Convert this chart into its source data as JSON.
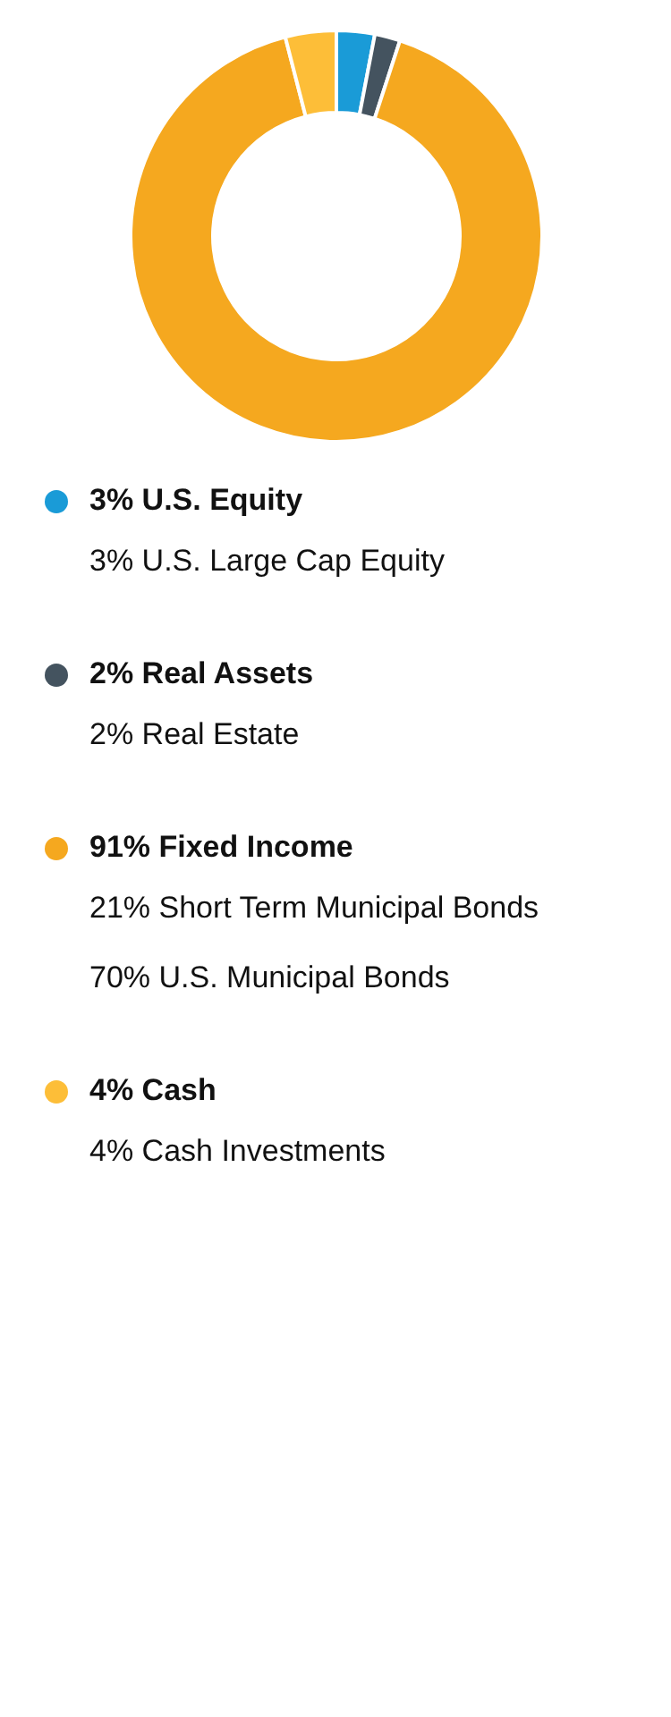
{
  "chart_data": {
    "type": "donut",
    "categories": [
      "U.S. Equity",
      "Real Assets",
      "Fixed Income",
      "Cash"
    ],
    "values": [
      3,
      2,
      91,
      4
    ],
    "value_labels": [
      "3%",
      "2%",
      "91%",
      "4%"
    ],
    "colors": [
      "#1a9bd7",
      "#44535f",
      "#f5a81f",
      "#fdbe38"
    ],
    "annotations": [
      {
        "text": "3% U.S. Large Cap Equity",
        "x": "U.S. Equity"
      },
      {
        "text": "2% Real Estate",
        "x": "Real Assets"
      },
      {
        "text": "21% Short Term Municipal Bonds",
        "x": "Fixed Income"
      },
      {
        "text": "70% U.S. Municipal Bonds",
        "x": "Fixed Income"
      },
      {
        "text": "4% Cash Investments",
        "x": "Cash"
      }
    ],
    "legend": "bottom"
  }
}
